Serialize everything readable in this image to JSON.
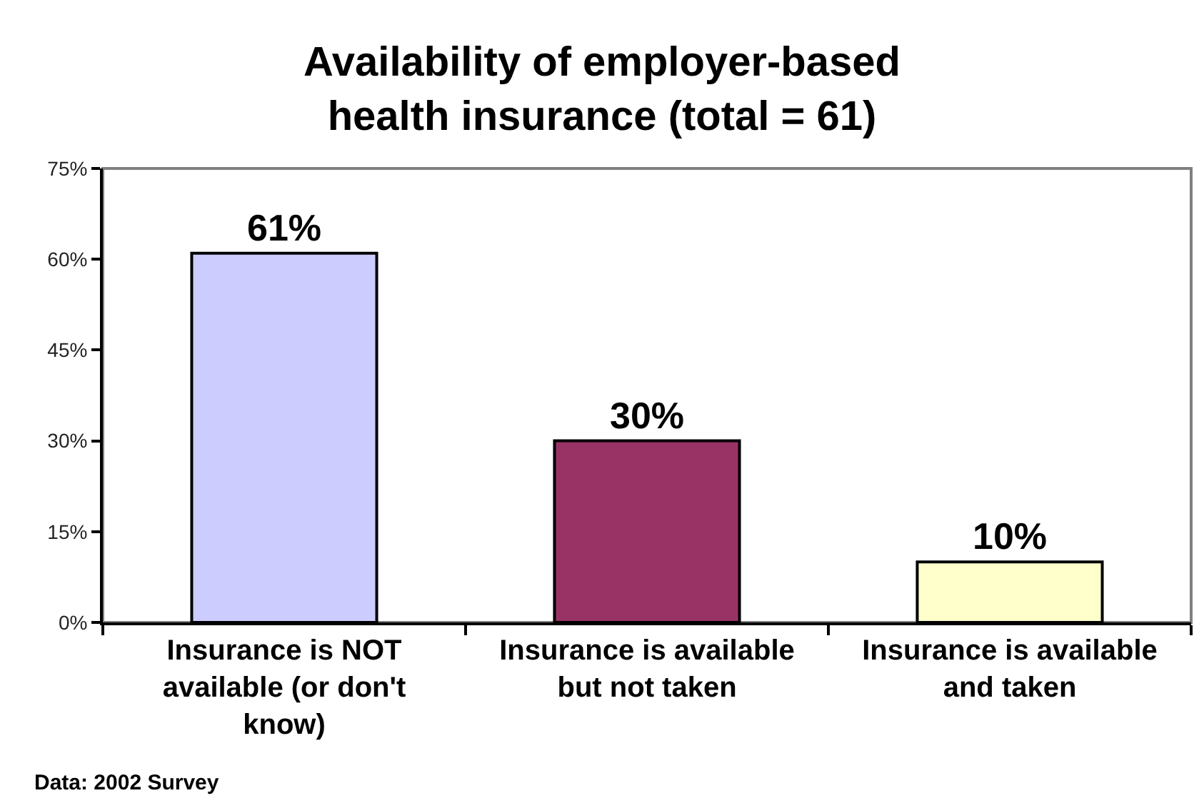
{
  "chart_data": {
    "type": "bar",
    "title": "Availability of employer-based health insurance (total = 61)",
    "categories": [
      "Insurance is NOT available (or don't know)",
      "Insurance is available but not taken",
      "Insurance is available and taken"
    ],
    "values": [
      61,
      30,
      10
    ],
    "colors": [
      "#ccccff",
      "#993366",
      "#ffffcc"
    ],
    "value_labels": [
      "61%",
      "30%",
      "10%"
    ],
    "ylim": [
      0,
      75
    ],
    "yticks": [
      {
        "value": 0,
        "label": "0%"
      },
      {
        "value": 15,
        "label": "15%"
      },
      {
        "value": 30,
        "label": "30%"
      },
      {
        "value": 45,
        "label": "45%"
      },
      {
        "value": 60,
        "label": "60%"
      },
      {
        "value": 75,
        "label": "75%"
      }
    ],
    "annotations": [
      "Data: 2002 Survey"
    ]
  }
}
